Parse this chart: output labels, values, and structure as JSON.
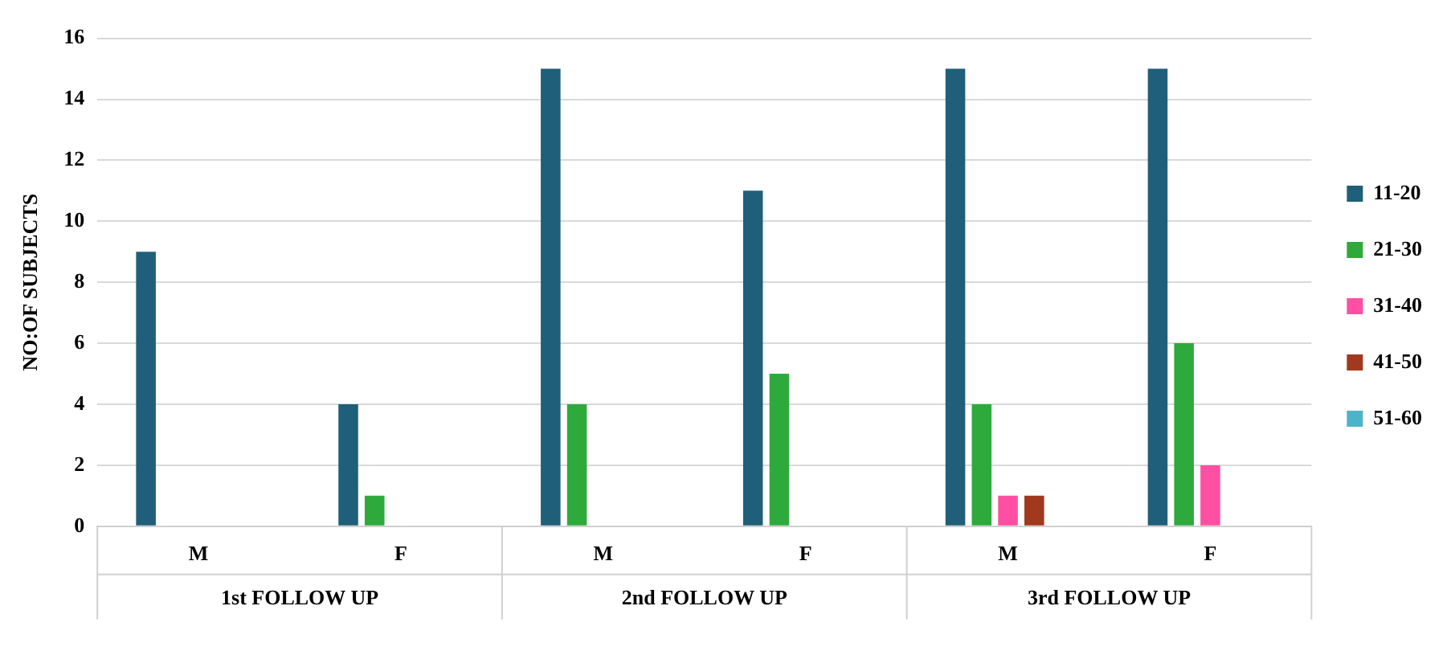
{
  "chart_data": {
    "type": "bar",
    "ylabel": "NO:OF SUBJECTS",
    "categories": [
      "M",
      "F",
      "M",
      "F",
      "M",
      "F"
    ],
    "series": [
      {
        "name": "11-20",
        "color": "#1f5f7a",
        "values": [
          9,
          4,
          15,
          11,
          15,
          15
        ]
      },
      {
        "name": "21-30",
        "color": "#2eaa3c",
        "values": [
          0,
          1,
          4,
          5,
          4,
          6
        ]
      },
      {
        "name": "31-40",
        "color": "#ff4fa3",
        "values": [
          0,
          0,
          0,
          0,
          1,
          2
        ]
      },
      {
        "name": "41-50",
        "color": "#a0391e",
        "values": [
          0,
          0,
          0,
          0,
          1,
          0
        ]
      },
      {
        "name": "51-60",
        "color": "#4bb4c8",
        "values": [
          0,
          0,
          0,
          0,
          0,
          0
        ]
      }
    ],
    "ylim": [
      0,
      16
    ],
    "yticks": [
      0,
      2,
      4,
      6,
      8,
      10,
      12,
      14,
      16
    ],
    "grid": "y",
    "legend": "right",
    "annotations": [
      "1st FOLLOW UP",
      "2nd FOLLOW UP",
      "3rd FOLLOW UP"
    ]
  }
}
